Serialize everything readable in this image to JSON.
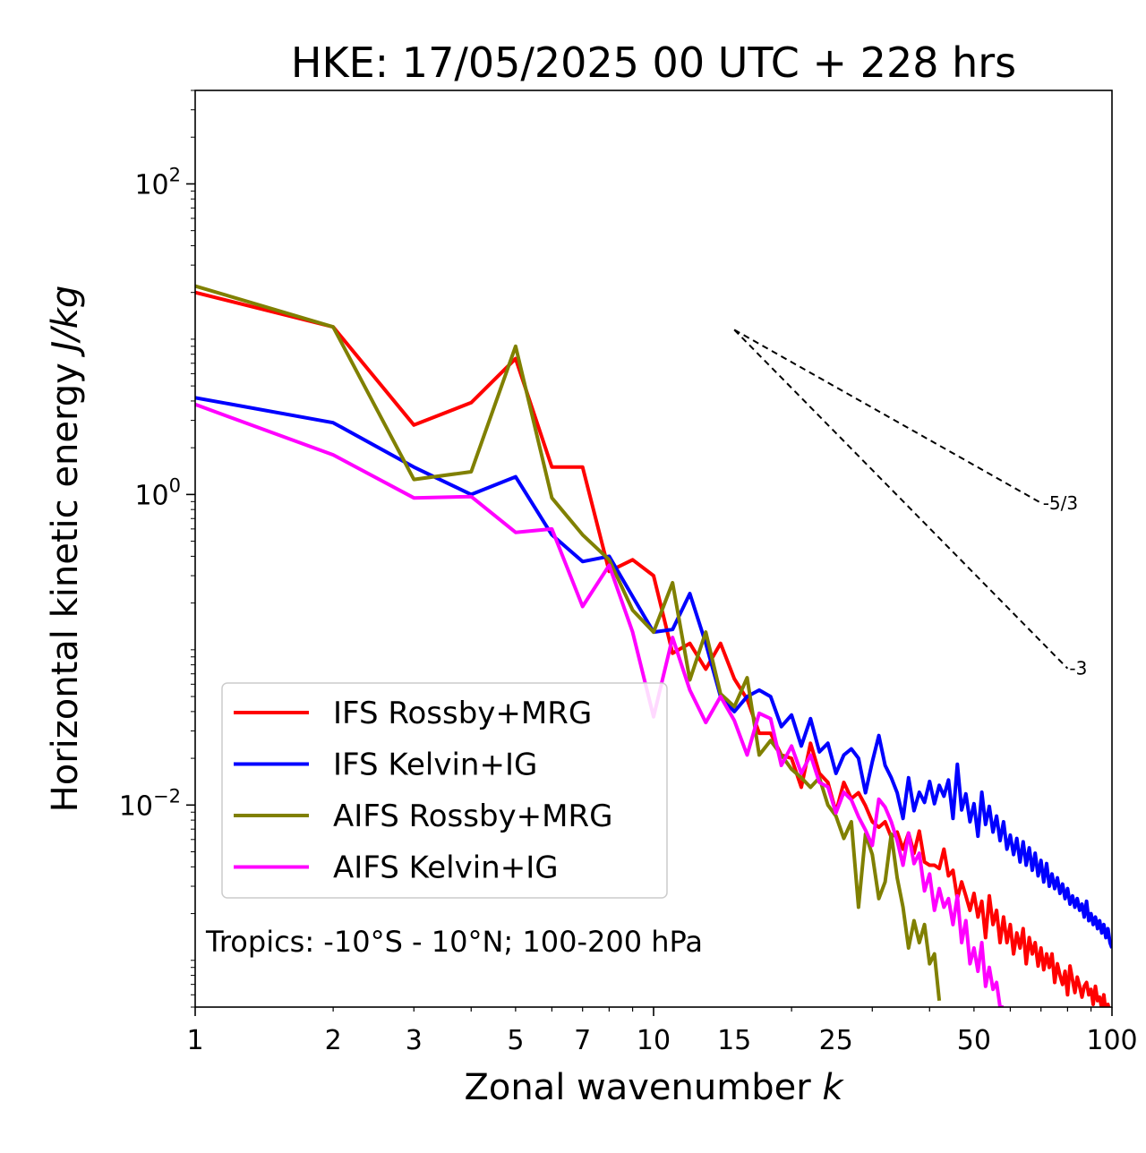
{
  "chart_data": {
    "type": "line",
    "title": "HKE: 17/05/2025 00 UTC + 228 hrs",
    "xlabel": "Zonal wavenumber k",
    "ylabel": "Horizontal kinetic energy J/kg",
    "xscale": "log",
    "yscale": "log",
    "xlim": [
      1,
      100
    ],
    "ylim": [
      0.0005,
      400
    ],
    "xticks": [
      {
        "value": 1,
        "label": "1"
      },
      {
        "value": 2,
        "label": "2"
      },
      {
        "value": 3,
        "label": "3"
      },
      {
        "value": 5,
        "label": "5"
      },
      {
        "value": 7,
        "label": "7"
      },
      {
        "value": 10,
        "label": "10"
      },
      {
        "value": 15,
        "label": "15"
      },
      {
        "value": 25,
        "label": "25"
      },
      {
        "value": 50,
        "label": "50"
      },
      {
        "value": 100,
        "label": "100"
      }
    ],
    "yticks": [
      {
        "value": 0.01,
        "base": "10",
        "exp": "−2"
      },
      {
        "value": 1,
        "base": "10",
        "exp": "0"
      },
      {
        "value": 100,
        "base": "10",
        "exp": "2"
      }
    ],
    "grid": false,
    "legend_position": "lower-left",
    "annotation": "Tropics: -10°S - 10°N; 100-200 hPa",
    "reference_slopes": [
      {
        "label": "-5/3",
        "k_start": 15,
        "k_end": 70,
        "y_start": 11.5,
        "exponent": -1.6667
      },
      {
        "label": "-3",
        "k_start": 15,
        "k_end": 80,
        "y_start": 11.5,
        "exponent": -3
      }
    ],
    "series": [
      {
        "name": "IFS Rossby+MRG",
        "color": "#ff0000",
        "x": [
          1,
          2,
          3,
          4,
          5,
          6,
          7,
          8,
          9,
          10,
          11,
          12,
          13,
          14,
          15,
          16,
          17,
          18,
          19,
          20,
          21,
          22,
          23,
          24,
          25,
          26,
          27,
          28,
          29,
          30,
          31,
          32,
          33,
          34,
          35,
          36,
          37,
          38,
          39,
          40,
          41,
          42,
          43,
          44,
          45,
          46,
          47,
          48,
          49,
          50,
          51,
          52,
          53,
          54,
          55,
          56,
          57,
          58,
          59,
          60,
          61,
          62,
          63,
          64,
          65,
          66,
          67,
          68,
          69,
          70,
          71,
          72,
          73,
          74,
          75,
          76,
          77,
          78,
          79,
          80,
          81,
          82,
          83,
          84,
          85,
          86,
          87,
          88,
          89,
          90,
          91,
          92,
          93,
          94,
          95,
          96,
          97,
          98,
          99,
          100
        ],
        "y": [
          20,
          12,
          2.8,
          3.9,
          7.5,
          1.5,
          1.5,
          0.32,
          0.38,
          0.3,
          0.095,
          0.11,
          0.075,
          0.11,
          0.065,
          0.048,
          0.029,
          0.029,
          0.021,
          0.02,
          0.013,
          0.025,
          0.016,
          0.014,
          0.009,
          0.014,
          0.011,
          0.012,
          0.0099,
          0.0078,
          0.0072,
          0.0078,
          0.0062,
          0.0067,
          0.0052,
          0.0066,
          0.0049,
          0.0068,
          0.0043,
          0.0041,
          0.0041,
          0.0039,
          0.0052,
          0.0035,
          0.0038,
          0.0025,
          0.0032,
          0.0026,
          0.0021,
          0.0027,
          0.0019,
          0.0024,
          0.0014,
          0.0026,
          0.0017,
          0.0021,
          0.0013,
          0.0019,
          0.0013,
          0.0017,
          0.0011,
          0.0015,
          0.0012,
          0.0016,
          0.00095,
          0.0014,
          0.0011,
          0.0013,
          0.00092,
          0.0012,
          0.00087,
          0.0011,
          0.0009,
          0.0011,
          0.00072,
          0.00095,
          0.0008,
          0.0007,
          0.00085,
          0.0006,
          0.00092,
          0.00075,
          0.00062,
          0.00078,
          0.00068,
          0.00058,
          0.00068,
          0.00072,
          0.0006,
          0.00065,
          0.00052,
          0.00068,
          0.00055,
          0.00058,
          0.00049,
          0.0006,
          0.00046,
          0.00052,
          0.00045,
          0.00048
        ]
      },
      {
        "name": "IFS Kelvin+IG",
        "color": "#0000ff",
        "x": [
          1,
          2,
          3,
          4,
          5,
          6,
          7,
          8,
          9,
          10,
          11,
          12,
          13,
          14,
          15,
          16,
          17,
          18,
          19,
          20,
          21,
          22,
          23,
          24,
          25,
          26,
          27,
          28,
          29,
          30,
          31,
          32,
          33,
          34,
          35,
          36,
          37,
          38,
          39,
          40,
          41,
          42,
          43,
          44,
          45,
          46,
          47,
          48,
          49,
          50,
          51,
          52,
          53,
          54,
          55,
          56,
          57,
          58,
          59,
          60,
          61,
          62,
          63,
          64,
          65,
          66,
          67,
          68,
          69,
          70,
          71,
          72,
          73,
          74,
          75,
          76,
          77,
          78,
          79,
          80,
          81,
          82,
          83,
          84,
          85,
          86,
          87,
          88,
          89,
          90,
          91,
          92,
          93,
          94,
          95,
          96,
          97,
          98,
          99,
          100
        ],
        "y": [
          4.2,
          2.9,
          1.5,
          1.0,
          1.3,
          0.55,
          0.37,
          0.4,
          0.22,
          0.13,
          0.135,
          0.23,
          0.11,
          0.05,
          0.04,
          0.05,
          0.055,
          0.05,
          0.032,
          0.038,
          0.024,
          0.036,
          0.022,
          0.025,
          0.016,
          0.021,
          0.023,
          0.02,
          0.012,
          0.019,
          0.028,
          0.018,
          0.015,
          0.012,
          0.0082,
          0.015,
          0.0092,
          0.0121,
          0.0104,
          0.0142,
          0.0102,
          0.0134,
          0.0114,
          0.0145,
          0.0082,
          0.0183,
          0.0093,
          0.0118,
          0.0078,
          0.0102,
          0.0063,
          0.0121,
          0.0075,
          0.0098,
          0.0067,
          0.0085,
          0.0059,
          0.0078,
          0.0052,
          0.0064,
          0.0048,
          0.0061,
          0.0043,
          0.0058,
          0.0041,
          0.0053,
          0.0038,
          0.0049,
          0.0035,
          0.0044,
          0.0032,
          0.0042,
          0.003,
          0.0036,
          0.0029,
          0.0034,
          0.0027,
          0.0031,
          0.0025,
          0.0029,
          0.0023,
          0.0026,
          0.0022,
          0.0025,
          0.0021,
          0.0023,
          0.0019,
          0.0024,
          0.0018,
          0.002,
          0.0017,
          0.0019,
          0.0016,
          0.0018,
          0.0015,
          0.0017,
          0.0014,
          0.0016,
          0.0013,
          0.0012
        ]
      },
      {
        "name": "AIFS Rossby+MRG",
        "color": "#808000",
        "x": [
          1,
          2,
          3,
          4,
          5,
          6,
          7,
          8,
          9,
          10,
          11,
          12,
          13,
          14,
          15,
          16,
          17,
          18,
          19,
          20,
          21,
          22,
          23,
          24,
          25,
          26,
          27,
          28,
          29,
          30,
          31,
          32,
          33,
          34,
          35,
          36,
          37,
          38,
          39,
          40,
          41,
          42
        ],
        "y": [
          22,
          12,
          1.25,
          1.4,
          9.0,
          0.95,
          0.55,
          0.38,
          0.18,
          0.13,
          0.27,
          0.064,
          0.13,
          0.052,
          0.043,
          0.066,
          0.021,
          0.026,
          0.021,
          0.017,
          0.015,
          0.013,
          0.015,
          0.01,
          0.0085,
          0.0061,
          0.0078,
          0.0022,
          0.0065,
          0.0048,
          0.0025,
          0.0032,
          0.0065,
          0.0034,
          0.0022,
          0.0012,
          0.0018,
          0.0013,
          0.0017,
          0.00095,
          0.0011,
          0.00055
        ]
      },
      {
        "name": "AIFS Kelvin+IG",
        "color": "#ff00ff",
        "x": [
          1,
          2,
          3,
          4,
          5,
          6,
          7,
          8,
          9,
          10,
          11,
          12,
          13,
          14,
          15,
          16,
          17,
          18,
          19,
          20,
          21,
          22,
          23,
          24,
          25,
          26,
          27,
          28,
          29,
          30,
          31,
          32,
          33,
          34,
          35,
          36,
          37,
          38,
          39,
          40,
          41,
          42,
          43,
          44,
          45,
          46,
          47,
          48,
          49,
          50,
          51,
          52,
          53,
          54,
          55,
          56,
          57,
          58
        ],
        "y": [
          3.8,
          1.8,
          0.95,
          0.97,
          0.57,
          0.6,
          0.19,
          0.35,
          0.13,
          0.037,
          0.12,
          0.055,
          0.034,
          0.05,
          0.035,
          0.021,
          0.039,
          0.036,
          0.018,
          0.024,
          0.016,
          0.021,
          0.014,
          0.0131,
          0.0089,
          0.0121,
          0.0108,
          0.0084,
          0.0069,
          0.0055,
          0.0109,
          0.0097,
          0.0078,
          0.0059,
          0.0041,
          0.0066,
          0.0042,
          0.0049,
          0.0028,
          0.0036,
          0.0021,
          0.0029,
          0.0022,
          0.0025,
          0.0017,
          0.0026,
          0.0013,
          0.0018,
          0.00095,
          0.0012,
          0.00085,
          0.0013,
          0.00068,
          0.0009,
          0.00065,
          0.00072,
          0.0005,
          0.0005
        ]
      }
    ]
  }
}
